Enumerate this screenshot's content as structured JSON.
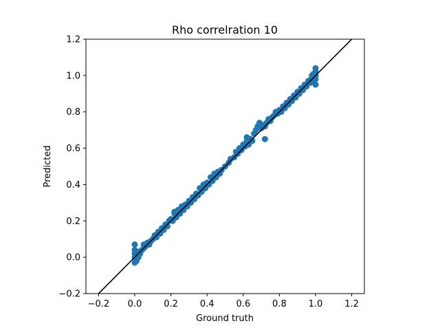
{
  "chart_data": {
    "type": "scatter",
    "title": "Rho correlration  10",
    "xlabel": "Ground truth",
    "ylabel": "Predicted",
    "xlim": [
      -0.27,
      1.27
    ],
    "ylim": [
      -0.2,
      1.2
    ],
    "xticks": [
      -0.2,
      0.0,
      0.2,
      0.4,
      0.6,
      0.8,
      1.0,
      1.2
    ],
    "xtick_labels": [
      "−0.2",
      "0.0",
      "0.2",
      "0.4",
      "0.6",
      "0.8",
      "1.0",
      "1.2"
    ],
    "yticks": [
      -0.2,
      0.0,
      0.2,
      0.4,
      0.6,
      0.8,
      1.0,
      1.2
    ],
    "ytick_labels": [
      "−0.2",
      "0.0",
      "0.2",
      "0.4",
      "0.6",
      "0.8",
      "1.0",
      "1.2"
    ],
    "grid": false,
    "series": [
      {
        "color": "#1f77b4",
        "points": [
          [
            0.0,
            -0.03
          ],
          [
            0.0,
            0.0
          ],
          [
            0.0,
            0.02
          ],
          [
            0.0,
            0.04
          ],
          [
            0.0,
            0.07
          ],
          [
            0.01,
            -0.02
          ],
          [
            0.01,
            0.01
          ],
          [
            0.01,
            0.03
          ],
          [
            0.02,
            0.0
          ],
          [
            0.02,
            0.03
          ],
          [
            0.03,
            0.02
          ],
          [
            0.04,
            0.04
          ],
          [
            0.05,
            0.05
          ],
          [
            0.05,
            0.07
          ],
          [
            0.06,
            0.06
          ],
          [
            0.07,
            0.08
          ],
          [
            0.08,
            0.07
          ],
          [
            0.09,
            0.09
          ],
          [
            0.1,
            0.1
          ],
          [
            0.11,
            0.12
          ],
          [
            0.12,
            0.11
          ],
          [
            0.13,
            0.14
          ],
          [
            0.14,
            0.13
          ],
          [
            0.15,
            0.16
          ],
          [
            0.16,
            0.15
          ],
          [
            0.17,
            0.18
          ],
          [
            0.18,
            0.17
          ],
          [
            0.19,
            0.2
          ],
          [
            0.2,
            0.21
          ],
          [
            0.21,
            0.2
          ],
          [
            0.22,
            0.24
          ],
          [
            0.22,
            0.25
          ],
          [
            0.23,
            0.22
          ],
          [
            0.24,
            0.26
          ],
          [
            0.25,
            0.24
          ],
          [
            0.26,
            0.28
          ],
          [
            0.27,
            0.26
          ],
          [
            0.28,
            0.29
          ],
          [
            0.29,
            0.28
          ],
          [
            0.3,
            0.31
          ],
          [
            0.31,
            0.3
          ],
          [
            0.32,
            0.33
          ],
          [
            0.33,
            0.32
          ],
          [
            0.34,
            0.35
          ],
          [
            0.35,
            0.34
          ],
          [
            0.36,
            0.38
          ],
          [
            0.37,
            0.36
          ],
          [
            0.38,
            0.4
          ],
          [
            0.39,
            0.38
          ],
          [
            0.4,
            0.41
          ],
          [
            0.41,
            0.4
          ],
          [
            0.42,
            0.44
          ],
          [
            0.43,
            0.42
          ],
          [
            0.44,
            0.46
          ],
          [
            0.45,
            0.44
          ],
          [
            0.46,
            0.47
          ],
          [
            0.47,
            0.46
          ],
          [
            0.48,
            0.48
          ],
          [
            0.5,
            0.5
          ],
          [
            0.52,
            0.52
          ],
          [
            0.53,
            0.54
          ],
          [
            0.55,
            0.55
          ],
          [
            0.56,
            0.58
          ],
          [
            0.57,
            0.57
          ],
          [
            0.58,
            0.6
          ],
          [
            0.59,
            0.59
          ],
          [
            0.6,
            0.62
          ],
          [
            0.61,
            0.61
          ],
          [
            0.62,
            0.64
          ],
          [
            0.62,
            0.66
          ],
          [
            0.63,
            0.62
          ],
          [
            0.64,
            0.65
          ],
          [
            0.65,
            0.64
          ],
          [
            0.66,
            0.68
          ],
          [
            0.67,
            0.7
          ],
          [
            0.68,
            0.72
          ],
          [
            0.69,
            0.74
          ],
          [
            0.7,
            0.71
          ],
          [
            0.7,
            0.73
          ],
          [
            0.72,
            0.65
          ],
          [
            0.72,
            0.72
          ],
          [
            0.73,
            0.74
          ],
          [
            0.74,
            0.76
          ],
          [
            0.75,
            0.75
          ],
          [
            0.76,
            0.77
          ],
          [
            0.77,
            0.78
          ],
          [
            0.78,
            0.8
          ],
          [
            0.79,
            0.79
          ],
          [
            0.8,
            0.81
          ],
          [
            0.81,
            0.8
          ],
          [
            0.82,
            0.83
          ],
          [
            0.83,
            0.82
          ],
          [
            0.84,
            0.85
          ],
          [
            0.85,
            0.84
          ],
          [
            0.86,
            0.87
          ],
          [
            0.87,
            0.86
          ],
          [
            0.88,
            0.89
          ],
          [
            0.89,
            0.88
          ],
          [
            0.9,
            0.91
          ],
          [
            0.91,
            0.9
          ],
          [
            0.92,
            0.93
          ],
          [
            0.93,
            0.92
          ],
          [
            0.94,
            0.95
          ],
          [
            0.95,
            0.94
          ],
          [
            0.96,
            0.97
          ],
          [
            0.97,
            0.96
          ],
          [
            0.98,
            0.99
          ],
          [
            0.99,
            0.97
          ],
          [
            1.0,
            0.95
          ],
          [
            1.0,
            0.98
          ],
          [
            1.0,
            1.0
          ],
          [
            1.0,
            1.02
          ],
          [
            1.0,
            1.04
          ],
          [
            0.99,
            1.01
          ],
          [
            0.98,
            1.0
          ]
        ]
      }
    ],
    "reference_line": {
      "label": "",
      "color": "#000000",
      "from": [
        -0.27,
        -0.27
      ],
      "to": [
        1.27,
        1.27
      ]
    }
  }
}
